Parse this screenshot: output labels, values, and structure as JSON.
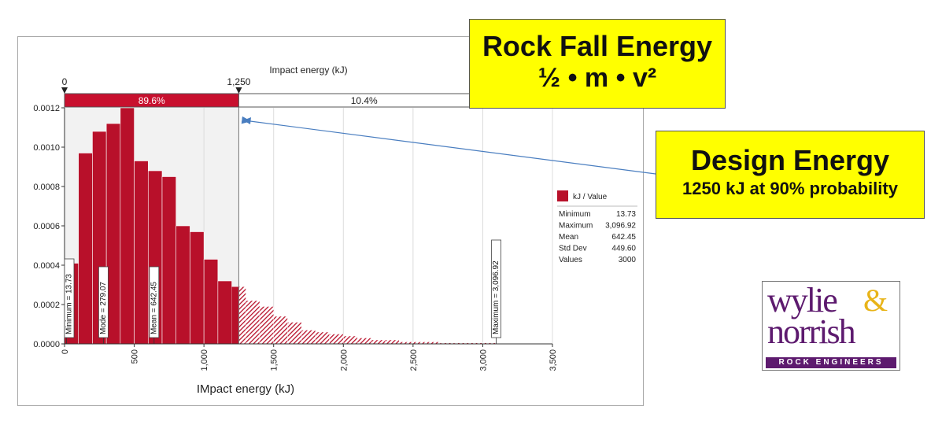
{
  "chart_data": {
    "type": "bar",
    "top_axis_label": "Impact energy (kJ)",
    "xlabel": "IMpact energy (kJ)",
    "ylabel": "",
    "xlim": [
      0,
      3500
    ],
    "ylim": [
      0,
      0.0012
    ],
    "x_ticks": [
      "0",
      "500",
      "1,000",
      "1,500",
      "2,000",
      "2,500",
      "3,000",
      "3,500"
    ],
    "y_ticks": [
      "0.0000",
      "0.0002",
      "0.0004",
      "0.0006",
      "0.0008",
      "0.0010",
      "0.0012"
    ],
    "bin_width": 100,
    "bin_starts": [
      0,
      100,
      200,
      300,
      400,
      500,
      600,
      700,
      800,
      900,
      1000,
      1100,
      1200,
      1300,
      1400,
      1500,
      1600,
      1700,
      1800,
      1900,
      2000,
      2100,
      2200,
      2300,
      2400,
      2500,
      2600,
      2700,
      2800,
      2900,
      3000
    ],
    "values": [
      0.00041,
      0.00097,
      0.00108,
      0.00112,
      0.0012,
      0.00093,
      0.00088,
      0.00085,
      0.0006,
      0.00057,
      0.00043,
      0.00032,
      0.00029,
      0.00022,
      0.00019,
      0.00014,
      0.00011,
      7e-05,
      6e-05,
      5e-05,
      4e-05,
      3e-05,
      2e-05,
      2e-05,
      1e-05,
      1e-05,
      1e-05,
      5e-06,
      5e-06,
      5e-06,
      5e-06
    ],
    "threshold": {
      "value": 1250,
      "label": "1,250",
      "start_label": "0",
      "left_pct": "89.6%",
      "right_pct": "10.4%"
    },
    "markers": [
      {
        "x": 13.73,
        "label": "Minimum = 13.73"
      },
      {
        "x": 279.07,
        "label": "Mode = 279.07"
      },
      {
        "x": 642.45,
        "label": "Mean = 642.45"
      },
      {
        "x": 3096.92,
        "label": "Maximum = 3,096.92"
      }
    ],
    "legend": {
      "title": "kJ / Value",
      "rows": [
        {
          "name": "Minimum",
          "value": "13.73"
        },
        {
          "name": "Maximum",
          "value": "3,096.92"
        },
        {
          "name": "Mean",
          "value": "642.45"
        },
        {
          "name": "Std Dev",
          "value": "449.60"
        },
        {
          "name": "Values",
          "value": "3000"
        }
      ]
    },
    "colors": {
      "bar": "#b8102a",
      "band_left": "#c8102e",
      "plot_bg": "#f2f2f2",
      "arrow": "#4a7ec0"
    }
  },
  "callouts": {
    "rockfall_title": "Rock Fall Energy",
    "rockfall_formula": "½ • m • v²",
    "design_title": "Design Energy",
    "design_sub": "1250 kJ at 90% probability"
  },
  "logo": {
    "line1": "wylie",
    "amp": "&",
    "line2": "norrish",
    "tagline": "ROCK ENGINEERS"
  }
}
